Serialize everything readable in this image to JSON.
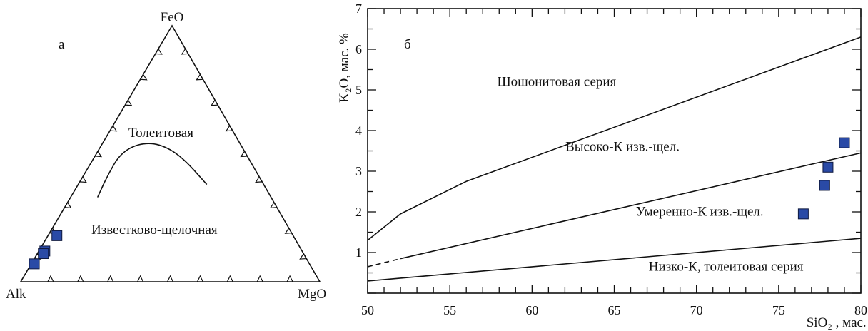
{
  "chart_data": [
    {
      "type": "ternary",
      "panel_label": "а",
      "vertices": {
        "top": "FeO",
        "left": "Alk",
        "right": "MgO"
      },
      "regions": [
        "Толеитовая",
        "Известково-щелочная"
      ],
      "boundary_curve": [
        {
          "Alk": 0.58,
          "FeO": 0.33,
          "MgO": 0.09
        },
        {
          "Alk": 0.5,
          "FeO": 0.42,
          "MgO": 0.08
        },
        {
          "Alk": 0.42,
          "FeO": 0.5,
          "MgO": 0.08
        },
        {
          "Alk": 0.34,
          "FeO": 0.54,
          "MgO": 0.12
        },
        {
          "Alk": 0.27,
          "FeO": 0.54,
          "MgO": 0.19
        },
        {
          "Alk": 0.22,
          "FeO": 0.49,
          "MgO": 0.29
        },
        {
          "Alk": 0.19,
          "FeO": 0.38,
          "MgO": 0.43
        }
      ],
      "points": [
        {
          "Alk": 0.79,
          "FeO": 0.18,
          "MgO": 0.03
        },
        {
          "Alk": 0.86,
          "FeO": 0.12,
          "MgO": 0.02
        },
        {
          "Alk": 0.87,
          "FeO": 0.11,
          "MgO": 0.02
        },
        {
          "Alk": 0.92,
          "FeO": 0.07,
          "MgO": 0.01
        }
      ],
      "tick_marks_per_side": 9,
      "point_color": "#2a4aa6"
    },
    {
      "type": "scatter",
      "panel_label": "б",
      "xlabel": "SiO₂ , мас. %",
      "ylabel": "K₂O, мас. %",
      "xlim": [
        50,
        80
      ],
      "ylim": [
        0,
        7
      ],
      "xticks": [
        50,
        55,
        60,
        65,
        70,
        75,
        80
      ],
      "yticks": [
        1,
        2,
        3,
        4,
        5,
        6,
        7
      ],
      "region_labels": [
        {
          "text": "Шошонитовая серия",
          "x": 61.5,
          "y": 5.1
        },
        {
          "text": "Высоко-К изв.-щел.",
          "x": 65.5,
          "y": 3.5
        },
        {
          "text": "Умеренно-К изв.-щел.",
          "x": 70.2,
          "y": 1.9
        },
        {
          "text": "Низко-К, толеитовая серия",
          "x": 71.8,
          "y": 0.55
        }
      ],
      "boundaries": [
        {
          "name": "upper",
          "points": [
            [
              50,
              1.3
            ],
            [
              52,
              1.95
            ],
            [
              56,
              2.75
            ],
            [
              80,
              6.3
            ]
          ],
          "dashed": false
        },
        {
          "name": "middle",
          "points": [
            [
              50,
              0.65
            ],
            [
              52,
              0.85
            ],
            [
              80,
              3.45
            ]
          ],
          "dashed_until": 52
        },
        {
          "name": "lower",
          "points": [
            [
              50,
              0.3
            ],
            [
              80,
              1.35
            ]
          ],
          "dashed": false
        }
      ],
      "points": [
        {
          "x": 76.5,
          "y": 1.95
        },
        {
          "x": 77.8,
          "y": 2.65
        },
        {
          "x": 78.0,
          "y": 3.1
        },
        {
          "x": 79.0,
          "y": 3.7
        }
      ],
      "point_color": "#2a4aa6",
      "grid": false
    }
  ]
}
